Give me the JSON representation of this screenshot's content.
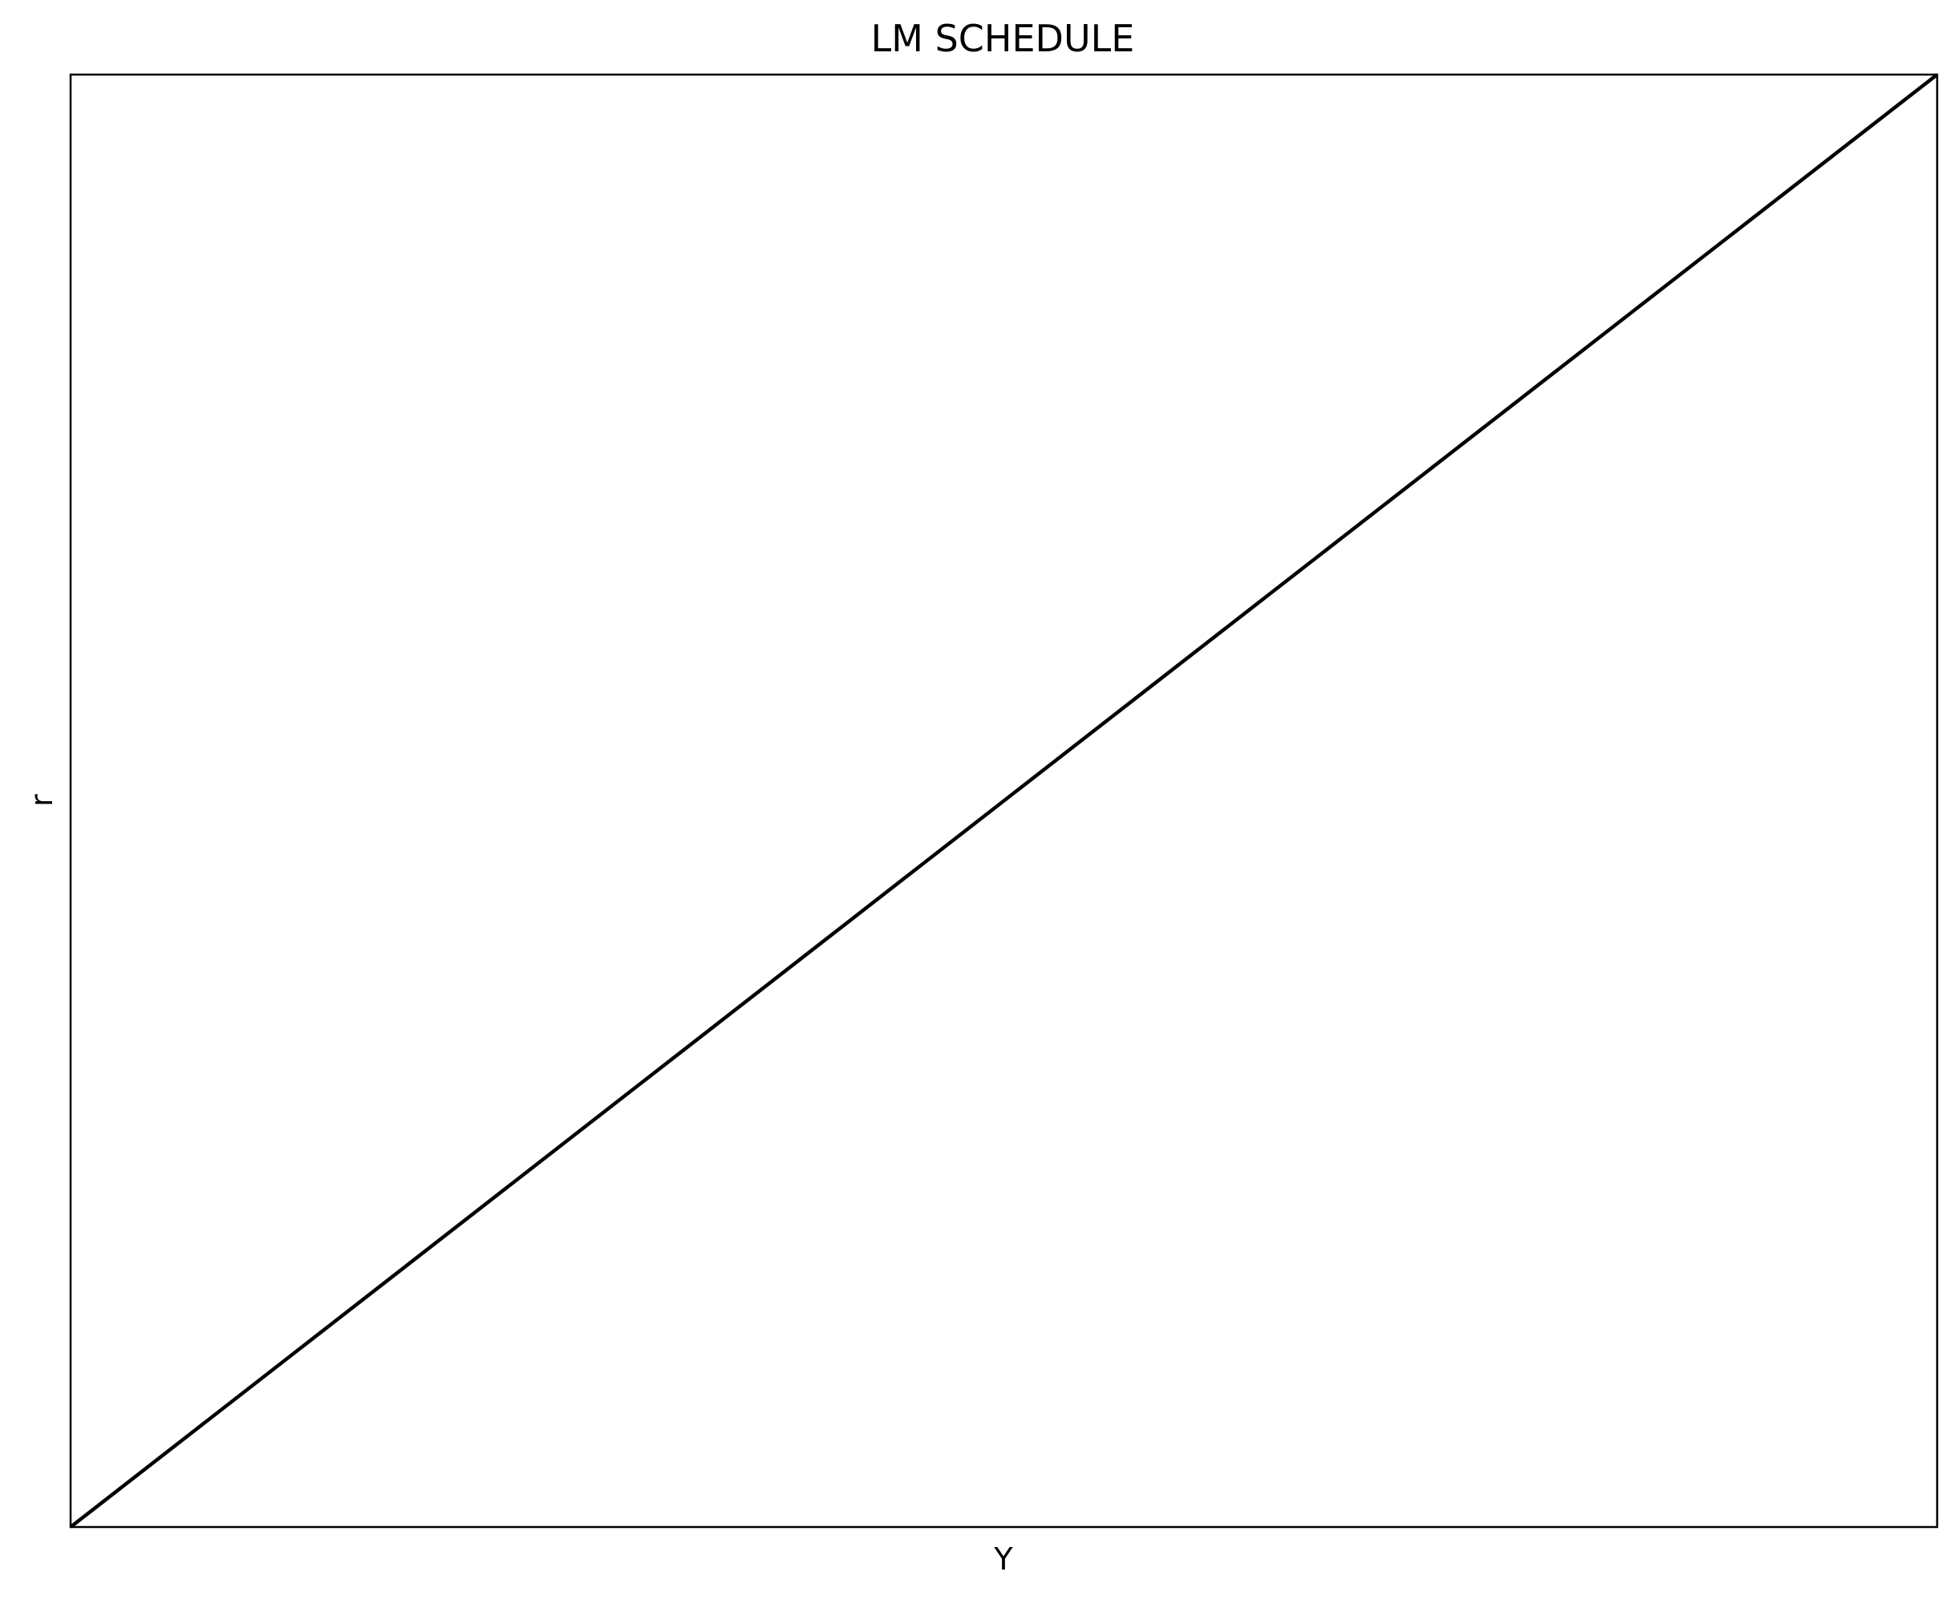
{
  "chart_data": {
    "type": "line",
    "title": "LM SCHEDULE",
    "xlabel": "Y",
    "ylabel": "r",
    "xlim": [
      0,
      1
    ],
    "ylim": [
      0,
      1
    ],
    "grid": false,
    "legend": "none",
    "x_ticks": [],
    "y_ticks": [],
    "series": [
      {
        "x": [
          0,
          1
        ],
        "y": [
          0,
          1
        ],
        "color": "#000000"
      }
    ]
  }
}
